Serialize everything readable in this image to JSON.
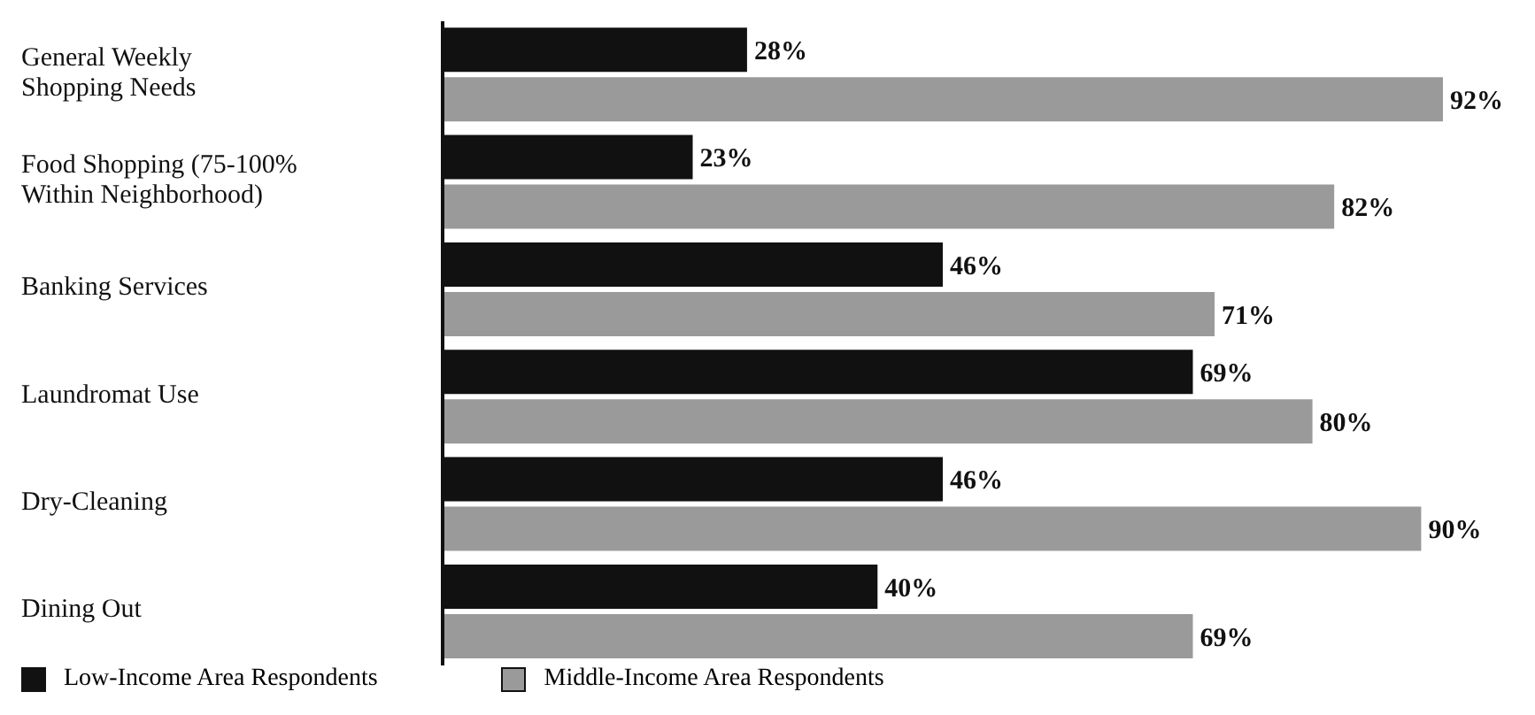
{
  "chart_data": {
    "type": "bar",
    "orientation": "horizontal",
    "categories": [
      "General Weekly Shopping Needs",
      "Food Shopping (75-100% Within Neighborhood)",
      "Banking Services",
      "Laundromat Use",
      "Dry-Cleaning",
      "Dining Out"
    ],
    "series": [
      {
        "name": "Low-Income Area Respondents",
        "color": "#111111",
        "values": [
          28,
          23,
          46,
          69,
          46,
          40
        ],
        "value_labels": [
          "28%",
          "23%",
          "46%",
          "69%",
          "46%",
          "40%"
        ]
      },
      {
        "name": "Middle-Income Area Respondents",
        "color": "#9a9a9a",
        "values": [
          92,
          82,
          71,
          80,
          90,
          69
        ],
        "value_labels": [
          "92%",
          "82%",
          "71%",
          "80%",
          "90%",
          "69%"
        ]
      }
    ],
    "tick_labels": false,
    "grid": false,
    "legend": "bottom left"
  }
}
